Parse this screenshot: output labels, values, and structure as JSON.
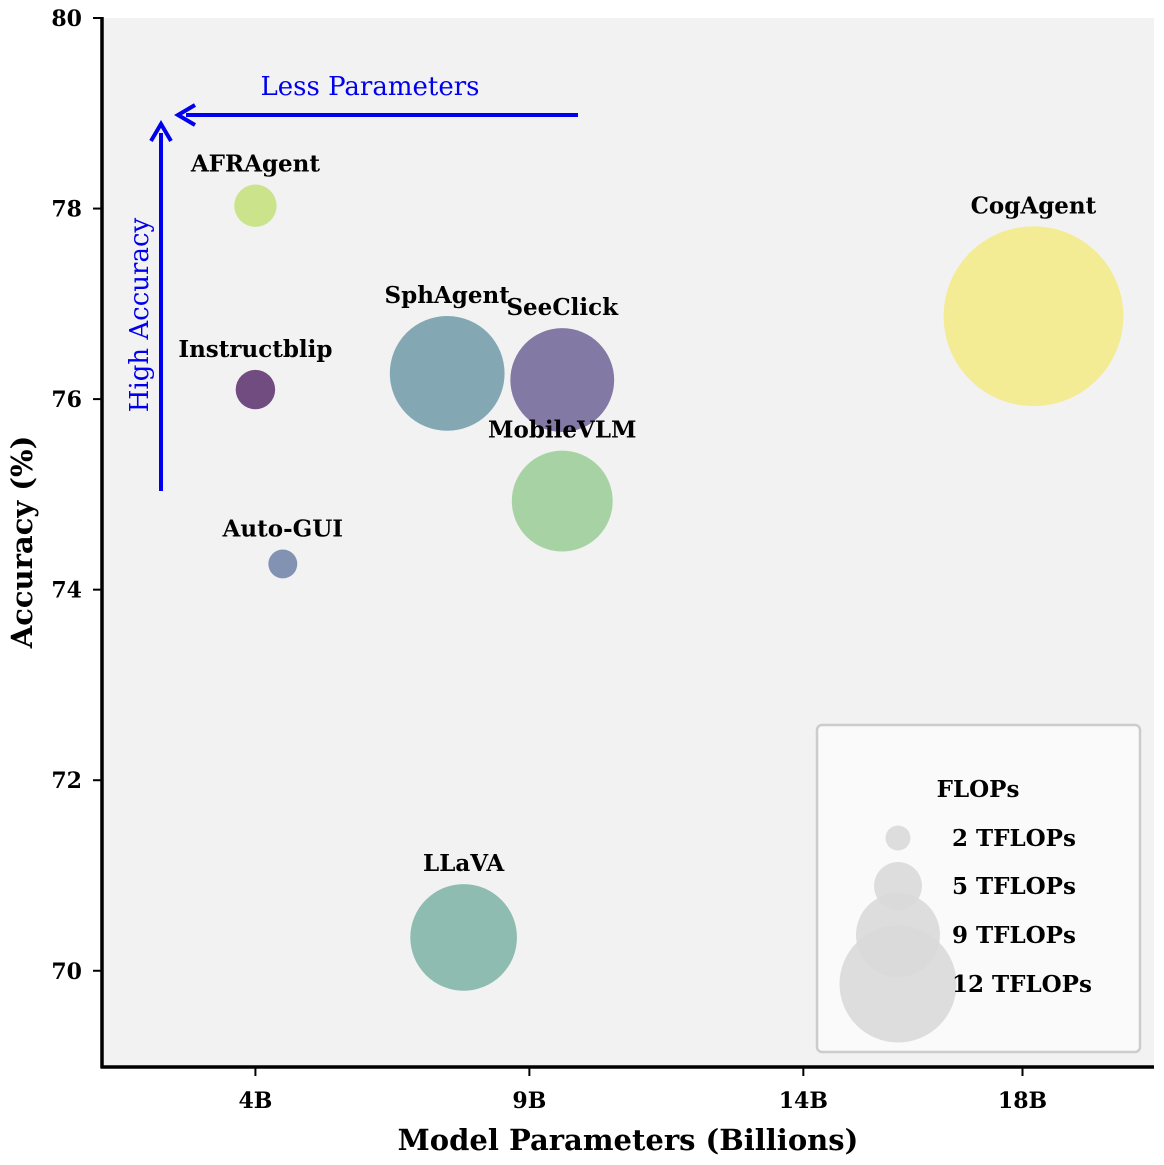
{
  "chart_data": {
    "type": "scatter",
    "variant": "bubble",
    "title": "",
    "xlabel": "Model Parameters (Billions)",
    "ylabel": "Accuracy (%)",
    "xlim": [
      1.2,
      20.4
    ],
    "ylim": [
      68.99,
      80.0
    ],
    "x_ticks": [
      {
        "value": 4,
        "label": "4B"
      },
      {
        "value": 9,
        "label": "9B"
      },
      {
        "value": 14,
        "label": "14B"
      },
      {
        "value": 18,
        "label": "18B"
      }
    ],
    "y_ticks": [
      {
        "value": 70,
        "label": "70"
      },
      {
        "value": 72,
        "label": "72"
      },
      {
        "value": 74,
        "label": "74"
      },
      {
        "value": 76,
        "label": "76"
      },
      {
        "value": 78,
        "label": "78"
      },
      {
        "value": 80,
        "label": "80"
      }
    ],
    "grid": false,
    "points": [
      {
        "name": "AFRAgent",
        "params_b": 4.0,
        "accuracy": 78.03,
        "tflops": 1.5,
        "color": "#cbe38a"
      },
      {
        "name": "Instructblip",
        "params_b": 4.0,
        "accuracy": 76.1,
        "tflops": 1.3,
        "color": "#714c80"
      },
      {
        "name": "Auto-GUI",
        "params_b": 4.5,
        "accuracy": 74.27,
        "tflops": 0.7,
        "color": "#8192b2"
      },
      {
        "name": "SphAgent",
        "params_b": 7.5,
        "accuracy": 76.27,
        "tflops": 11.0,
        "color": "#83a8b4"
      },
      {
        "name": "SeeClick",
        "params_b": 9.6,
        "accuracy": 76.2,
        "tflops": 9.0,
        "color": "#8279a4"
      },
      {
        "name": "MobileVLM",
        "params_b": 9.6,
        "accuracy": 74.93,
        "tflops": 8.5,
        "color": "#a7d3a4"
      },
      {
        "name": "CogAgent",
        "params_b": 18.2,
        "accuracy": 76.87,
        "tflops": 27.0,
        "color": "#f3ec94"
      },
      {
        "name": "LLaVA",
        "params_b": 7.8,
        "accuracy": 70.35,
        "tflops": 9.5,
        "color": "#8fbcb0"
      }
    ],
    "annotations": [
      {
        "text": "Less Parameters",
        "direction": "left",
        "color": "#0000ee"
      },
      {
        "text": "High Accuracy",
        "direction": "up",
        "color": "#0000ee"
      }
    ],
    "legend": {
      "title": "FLOPs",
      "position": "bottom-right",
      "color": "#d9d9d9",
      "entries": [
        {
          "label": "2 TFLOPs",
          "tflops": 2
        },
        {
          "label": "5 TFLOPs",
          "tflops": 5
        },
        {
          "label": "9 TFLOPs",
          "tflops": 9
        },
        {
          "label": "12 TFLOPs",
          "tflops": 12
        }
      ]
    }
  }
}
